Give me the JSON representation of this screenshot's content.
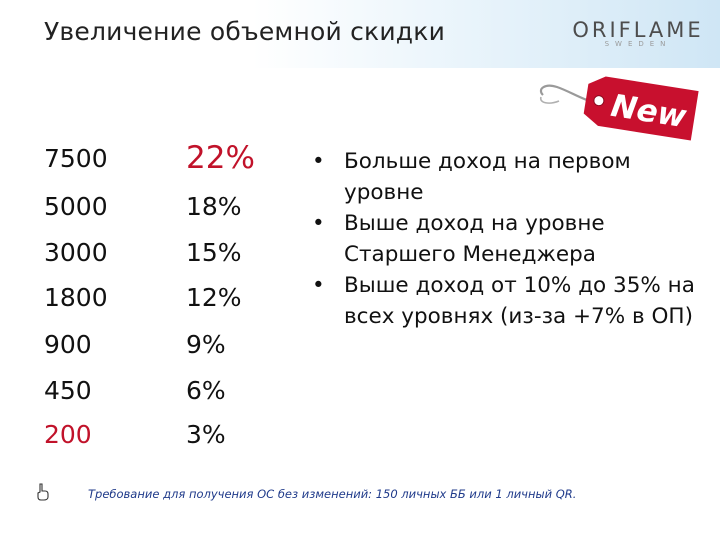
{
  "header": {
    "title": "Увеличение объемной скидки",
    "brand": "ORIFLAME",
    "brand_sub": "SWEDEN"
  },
  "tag": {
    "label": "New",
    "color": "#c8102e"
  },
  "table": {
    "rows": [
      {
        "amount": "7500",
        "percent": "22%"
      },
      {
        "amount": "5000",
        "percent": "18%"
      },
      {
        "amount": "3000",
        "percent": "15%"
      },
      {
        "amount": "1800",
        "percent": "12%"
      },
      {
        "amount": "900",
        "percent": "9%"
      },
      {
        "amount": "450",
        "percent": "6%"
      },
      {
        "amount": "200",
        "percent": "3%"
      }
    ]
  },
  "bullets": {
    "marker": "•",
    "items": [
      "Больше доход на первом уровне",
      "Выше доход на уровне Старшего Менеджера",
      "Выше доход от 10% до 35% на всех уровнях (из-за +7% в ОП)"
    ]
  },
  "footnote": "Требование для получения ОС без изменений: 150 личных ББ или 1 личный QR.",
  "colors": {
    "accent_red": "#c1122a",
    "footnote_blue": "#1f3a8a"
  }
}
